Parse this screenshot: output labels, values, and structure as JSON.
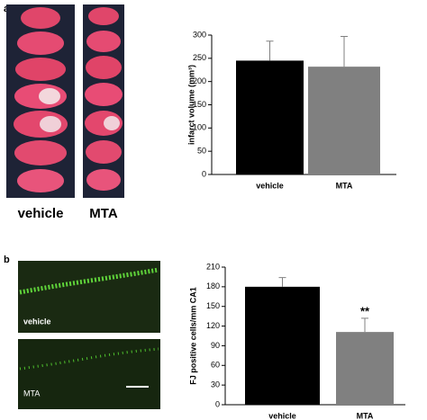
{
  "panel_a": {
    "label": "a",
    "image_labels": [
      "vehicle",
      "MTA"
    ]
  },
  "panel_b": {
    "label": "b",
    "image_labels": [
      "vehicle",
      "MTA"
    ]
  },
  "chart_data": [
    {
      "type": "bar",
      "y_label": "infarct volume (mm³)",
      "categories": [
        "vehicle",
        "MTA"
      ],
      "values": [
        245,
        232
      ],
      "errors": [
        42,
        65
      ],
      "colors": [
        "#000000",
        "#808080"
      ],
      "ylim": [
        0,
        300
      ],
      "yticks": [
        0,
        50,
        100,
        150,
        200,
        250,
        300
      ]
    },
    {
      "type": "bar",
      "y_label": "FJ positive cells/mm CA1",
      "categories": [
        "vehicle",
        "MTA"
      ],
      "values": [
        180,
        111
      ],
      "errors": [
        14,
        21
      ],
      "colors": [
        "#000000",
        "#808080"
      ],
      "annotation": "**",
      "ylim": [
        0,
        210
      ],
      "yticks": [
        0,
        30,
        60,
        90,
        120,
        150,
        180,
        210
      ]
    }
  ]
}
